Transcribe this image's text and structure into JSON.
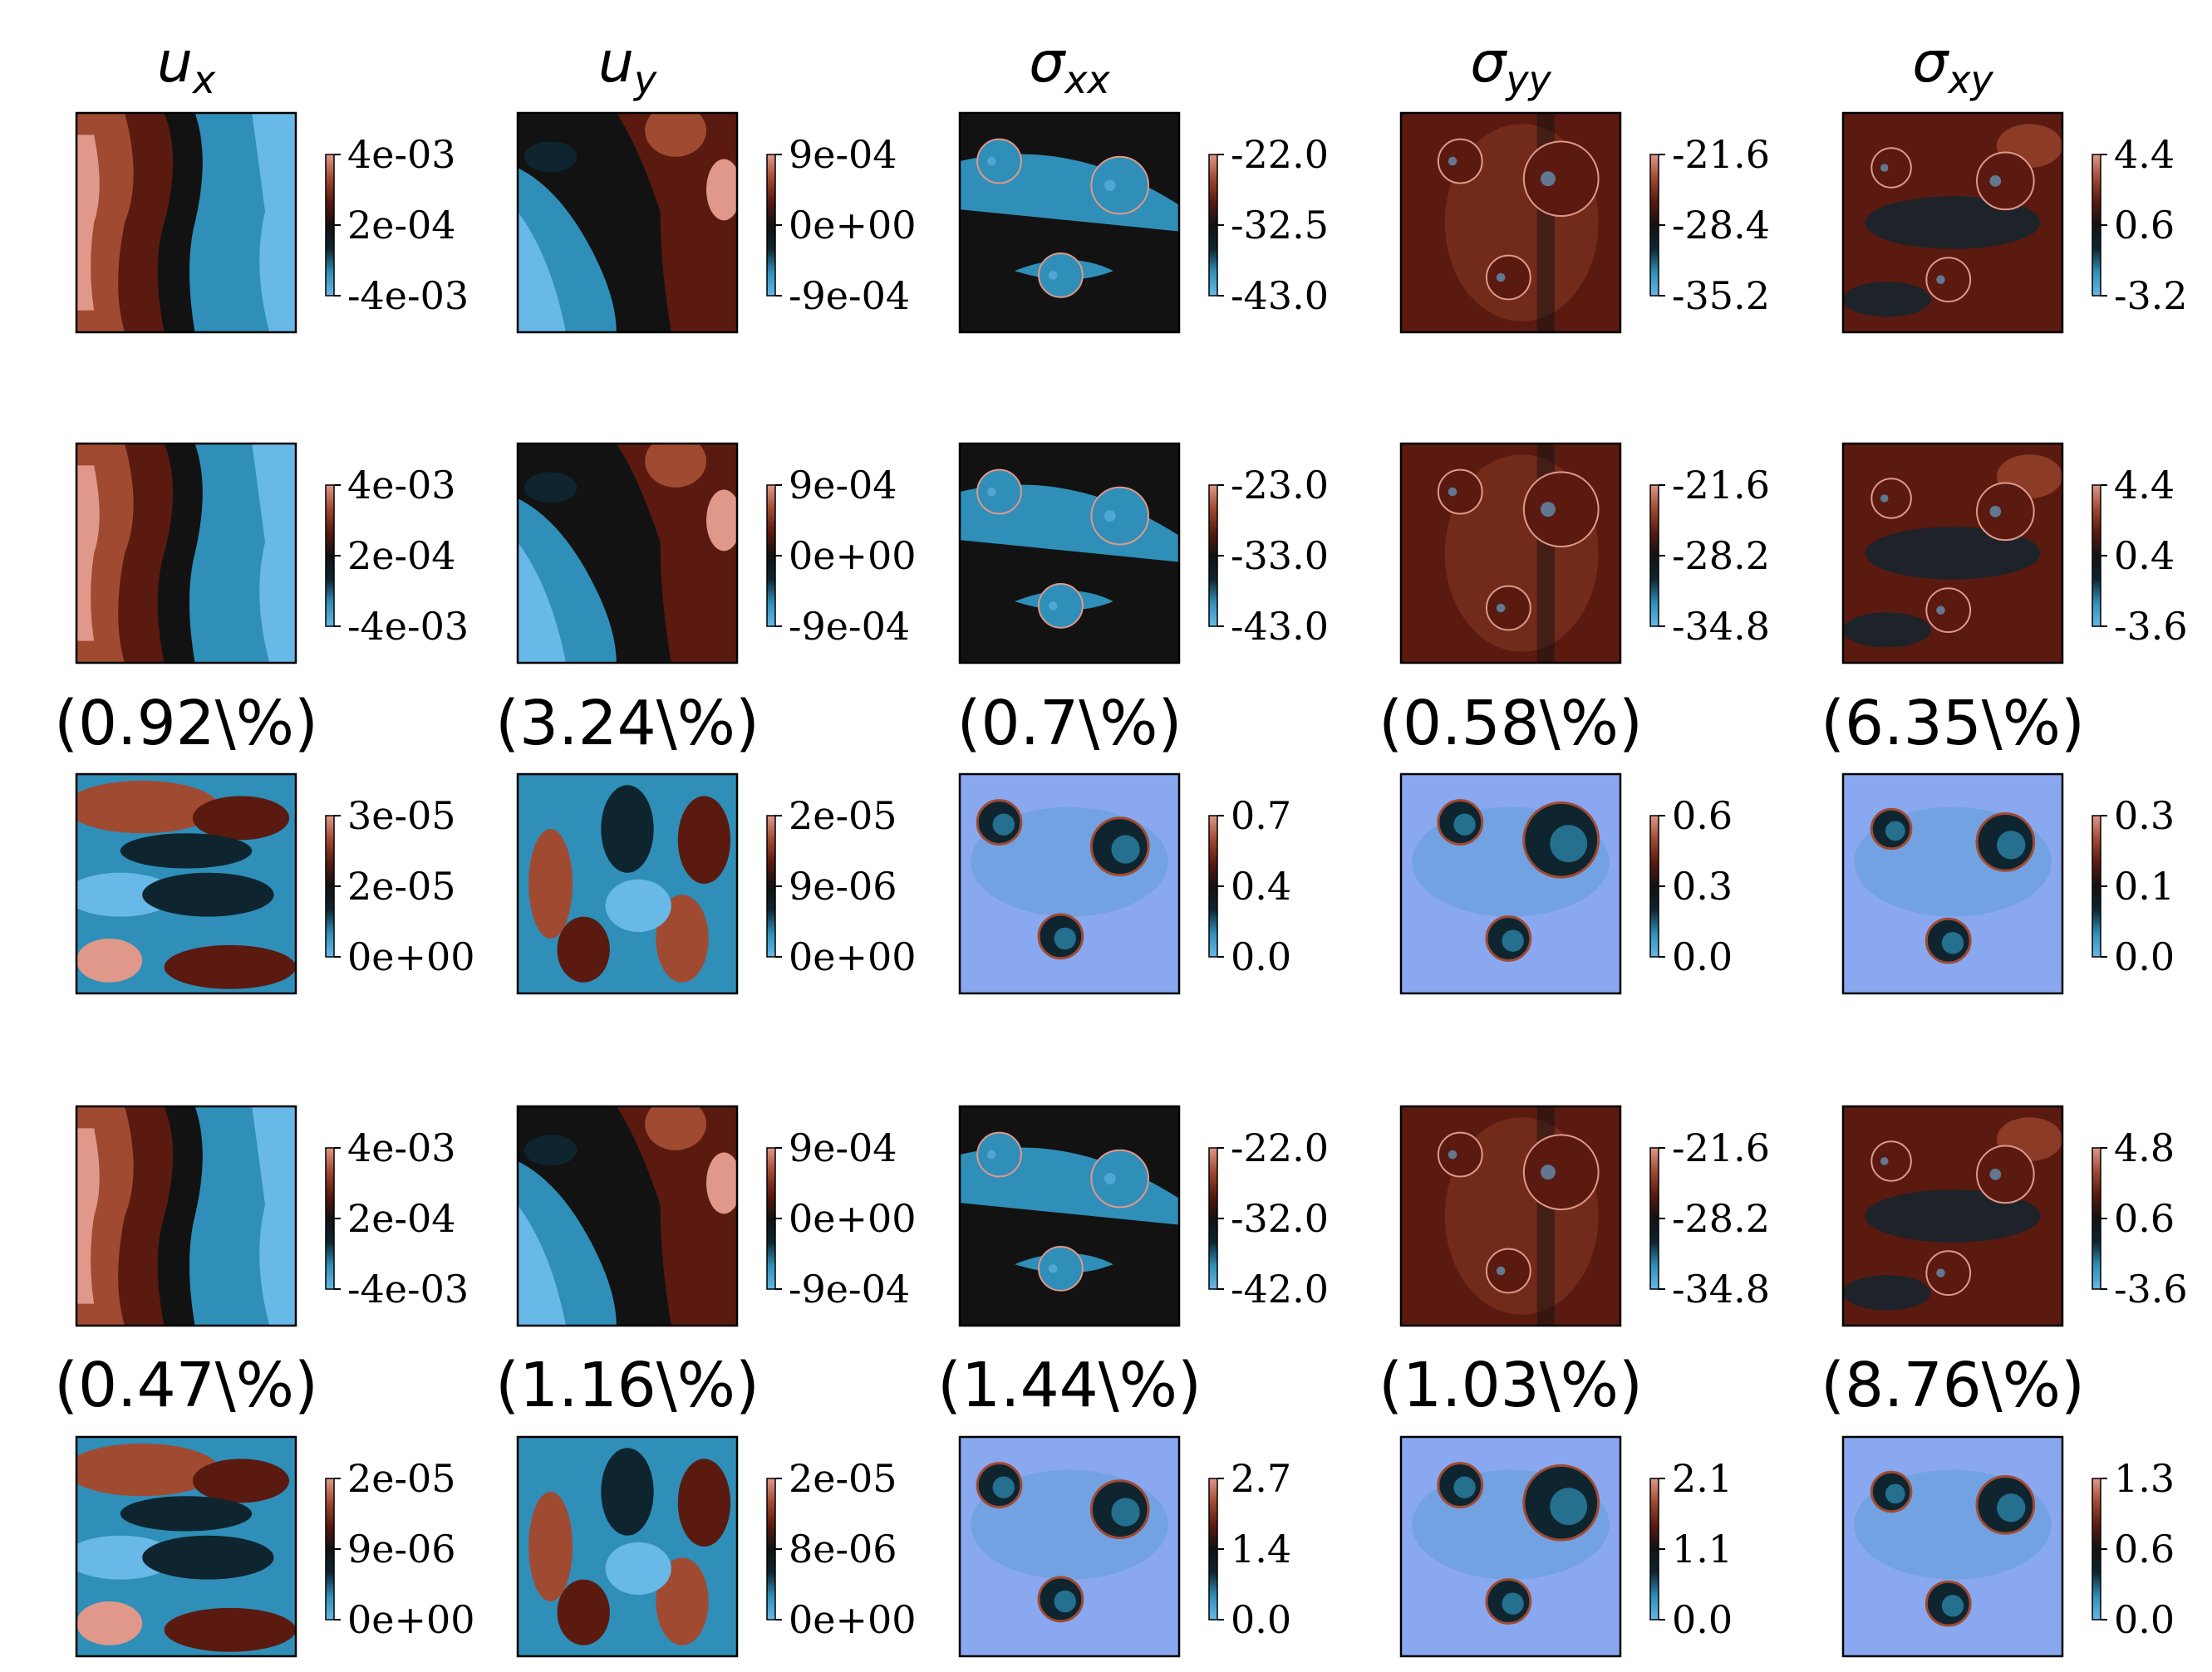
{
  "chart_data": {
    "type": "heatmap",
    "columns": [
      {
        "symbol": "u",
        "sub": "x"
      },
      {
        "symbol": "u",
        "sub": "y"
      },
      {
        "symbol": "σ",
        "sub": "xx"
      },
      {
        "symbol": "σ",
        "sub": "yy"
      },
      {
        "symbol": "σ",
        "sub": "xy"
      }
    ],
    "colormap": [
      "#68b8e8",
      "#2f8fb8",
      "#0e2530",
      "#121212",
      "#5a1a10",
      "#a14a32",
      "#e0988a"
    ],
    "error_colormap_background": "#8aa8f0",
    "rows": [
      {
        "kind": "field",
        "panels": [
          {
            "colorbar_ticks": [
              "4e-03",
              "2e-04",
              "-4e-03"
            ]
          },
          {
            "colorbar_ticks": [
              "9e-04",
              "0e+00",
              "-9e-04"
            ]
          },
          {
            "colorbar_ticks": [
              "-22.0",
              "-32.5",
              "-43.0"
            ]
          },
          {
            "colorbar_ticks": [
              "-21.6",
              "-28.4",
              "-35.2"
            ]
          },
          {
            "colorbar_ticks": [
              "4.4",
              "0.6",
              "-3.2"
            ]
          }
        ]
      },
      {
        "kind": "field",
        "panels": [
          {
            "colorbar_ticks": [
              "4e-03",
              "2e-04",
              "-4e-03"
            ]
          },
          {
            "colorbar_ticks": [
              "9e-04",
              "0e+00",
              "-9e-04"
            ]
          },
          {
            "colorbar_ticks": [
              "-23.0",
              "-33.0",
              "-43.0"
            ]
          },
          {
            "colorbar_ticks": [
              "-21.6",
              "-28.2",
              "-34.8"
            ]
          },
          {
            "colorbar_ticks": [
              "4.4",
              "0.4",
              "-3.6"
            ]
          }
        ]
      },
      {
        "kind": "error",
        "labels": [
          "(0.92\\%)",
          "(3.24\\%)",
          "(0.7\\%)",
          "(0.58\\%)",
          "(6.35\\%)"
        ],
        "panels": [
          {
            "colorbar_ticks": [
              "3e-05",
              "2e-05",
              "0e+00"
            ]
          },
          {
            "colorbar_ticks": [
              "2e-05",
              "9e-06",
              "0e+00"
            ]
          },
          {
            "colorbar_ticks": [
              "0.7",
              "0.4",
              "0.0"
            ]
          },
          {
            "colorbar_ticks": [
              "0.6",
              "0.3",
              "0.0"
            ]
          },
          {
            "colorbar_ticks": [
              "0.3",
              "0.1",
              "0.0"
            ]
          }
        ]
      },
      {
        "kind": "field",
        "panels": [
          {
            "colorbar_ticks": [
              "4e-03",
              "2e-04",
              "-4e-03"
            ]
          },
          {
            "colorbar_ticks": [
              "9e-04",
              "0e+00",
              "-9e-04"
            ]
          },
          {
            "colorbar_ticks": [
              "-22.0",
              "-32.0",
              "-42.0"
            ]
          },
          {
            "colorbar_ticks": [
              "-21.6",
              "-28.2",
              "-34.8"
            ]
          },
          {
            "colorbar_ticks": [
              "4.8",
              "0.6",
              "-3.6"
            ]
          }
        ]
      },
      {
        "kind": "error",
        "labels": [
          "(0.47\\%)",
          "(1.16\\%)",
          "(1.44\\%)",
          "(1.03\\%)",
          "(8.76\\%)"
        ],
        "panels": [
          {
            "colorbar_ticks": [
              "2e-05",
              "9e-06",
              "0e+00"
            ]
          },
          {
            "colorbar_ticks": [
              "2e-05",
              "8e-06",
              "0e+00"
            ]
          },
          {
            "colorbar_ticks": [
              "2.7",
              "1.4",
              "0.0"
            ]
          },
          {
            "colorbar_ticks": [
              "2.1",
              "1.1",
              "0.0"
            ]
          },
          {
            "colorbar_ticks": [
              "1.3",
              "0.6",
              "0.0"
            ]
          }
        ]
      }
    ]
  }
}
